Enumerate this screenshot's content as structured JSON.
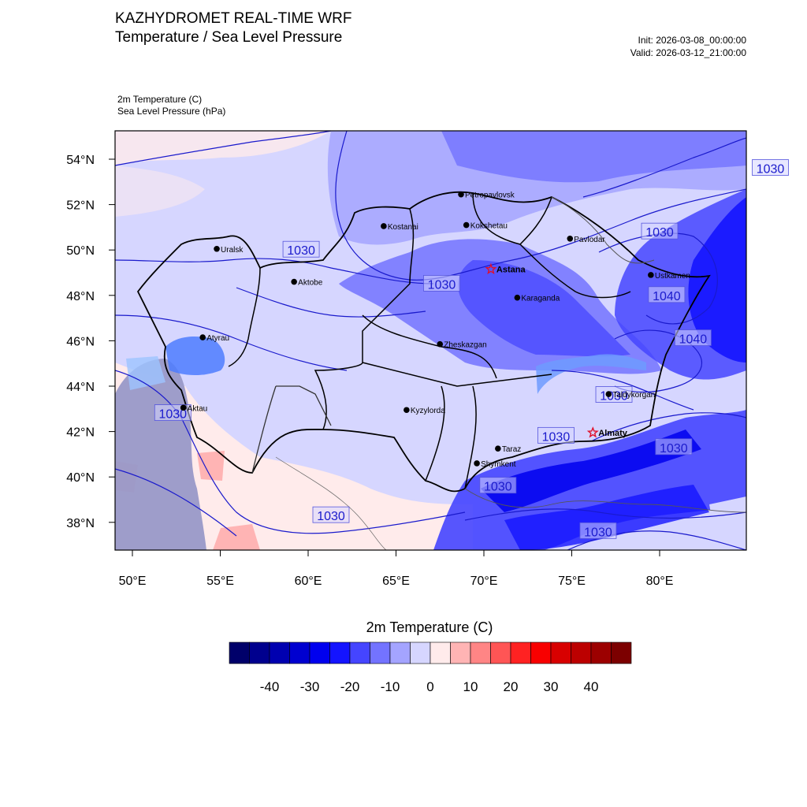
{
  "header": {
    "title": "KAZHYDROMET REAL-TIME WRF",
    "subtitle": "Temperature / Sea Level Pressure",
    "init": "Init: 2026-03-08_00:00:00",
    "valid": "Valid: 2026-03-12_21:00:00"
  },
  "variables": {
    "line1": "2m Temperature   (C)",
    "line2": "Sea Level Pressure   (hPa)"
  },
  "map": {
    "lat_ticks": [
      {
        "label": "54°N",
        "lat": 54
      },
      {
        "label": "52°N",
        "lat": 52
      },
      {
        "label": "50°N",
        "lat": 50
      },
      {
        "label": "48°N",
        "lat": 48
      },
      {
        "label": "46°N",
        "lat": 46
      },
      {
        "label": "44°N",
        "lat": 44
      },
      {
        "label": "42°N",
        "lat": 42
      },
      {
        "label": "40°N",
        "lat": 40
      },
      {
        "label": "38°N",
        "lat": 38
      }
    ],
    "lon_ticks": [
      {
        "label": "50°E",
        "lon": 50
      },
      {
        "label": "55°E",
        "lon": 55
      },
      {
        "label": "60°E",
        "lon": 60
      },
      {
        "label": "65°E",
        "lon": 65
      },
      {
        "label": "70°E",
        "lon": 70
      },
      {
        "label": "75°E",
        "lon": 75
      },
      {
        "label": "80°E",
        "lon": 80
      }
    ],
    "cities": [
      {
        "name": "Petropavlovsk",
        "lon": 68.7,
        "lat": 52.45,
        "capital": false
      },
      {
        "name": "Kostanai",
        "lon": 64.3,
        "lat": 51.05,
        "capital": false
      },
      {
        "name": "Kokshetau",
        "lon": 69.0,
        "lat": 51.1,
        "capital": false
      },
      {
        "name": "Pavlodar",
        "lon": 74.9,
        "lat": 50.5,
        "capital": false
      },
      {
        "name": "Uralsk",
        "lon": 54.8,
        "lat": 50.05,
        "capital": false
      },
      {
        "name": "Astana",
        "lon": 70.4,
        "lat": 49.15,
        "capital": true
      },
      {
        "name": "Ustkamen",
        "lon": 79.5,
        "lat": 48.9,
        "capital": false
      },
      {
        "name": "Aktobe",
        "lon": 59.2,
        "lat": 48.6,
        "capital": false
      },
      {
        "name": "Karaganda",
        "lon": 71.9,
        "lat": 47.9,
        "capital": false
      },
      {
        "name": "Atyrau",
        "lon": 54.0,
        "lat": 46.15,
        "capital": false
      },
      {
        "name": "Zheskazgan",
        "lon": 67.5,
        "lat": 45.85,
        "capital": false
      },
      {
        "name": "Taldykorgan",
        "lon": 77.1,
        "lat": 43.65,
        "capital": false
      },
      {
        "name": "Aktau",
        "lon": 52.9,
        "lat": 43.05,
        "capital": false
      },
      {
        "name": "Kyzylorda",
        "lon": 65.6,
        "lat": 42.95,
        "capital": false
      },
      {
        "name": "Almaty",
        "lon": 76.2,
        "lat": 41.95,
        "capital": true
      },
      {
        "name": "Taraz",
        "lon": 70.8,
        "lat": 41.25,
        "capital": false
      },
      {
        "name": "Shymkent",
        "lon": 69.6,
        "lat": 40.6,
        "capital": false
      }
    ],
    "isobar_labels": [
      {
        "text": "1030",
        "lon": 86.3,
        "lat": 53.6
      },
      {
        "text": "1030",
        "lon": 80.0,
        "lat": 50.8
      },
      {
        "text": "1030",
        "lon": 59.6,
        "lat": 50.0
      },
      {
        "text": "1030",
        "lon": 67.6,
        "lat": 48.5
      },
      {
        "text": "1040",
        "lon": 80.4,
        "lat": 48.0
      },
      {
        "text": "1040",
        "lon": 81.9,
        "lat": 46.1
      },
      {
        "text": "1030",
        "lon": 52.3,
        "lat": 42.8
      },
      {
        "text": "1030",
        "lon": 80.8,
        "lat": 41.3
      },
      {
        "text": "1030",
        "lon": 74.1,
        "lat": 41.8
      },
      {
        "text": "1030",
        "lon": 70.8,
        "lat": 39.6
      },
      {
        "text": "1030",
        "lon": 61.3,
        "lat": 38.3
      },
      {
        "text": "1030",
        "lon": 76.5,
        "lat": 37.6
      },
      {
        "text": "1030",
        "lon": 77.4,
        "lat": 43.6
      }
    ]
  },
  "colorbar": {
    "title": "2m Temperature  (C)",
    "colors": [
      "#00006a",
      "#00008e",
      "#0000b0",
      "#0000d0",
      "#0000ee",
      "#1414ff",
      "#4545ff",
      "#7373ff",
      "#a4a4ff",
      "#d6d6ff",
      "#ffebeb",
      "#ffb4b4",
      "#ff8585",
      "#ff5555",
      "#ff2222",
      "#f80000",
      "#d80000",
      "#bc0000",
      "#9c0000",
      "#7c0000"
    ],
    "labels": [
      {
        "text": "-40",
        "index": 2
      },
      {
        "text": "-30",
        "index": 4
      },
      {
        "text": "-20",
        "index": 6
      },
      {
        "text": "-10",
        "index": 8
      },
      {
        "text": "0",
        "index": 10
      },
      {
        "text": "10",
        "index": 12
      },
      {
        "text": "20",
        "index": 14
      },
      {
        "text": "30",
        "index": 16
      },
      {
        "text": "40",
        "index": 18
      }
    ]
  }
}
